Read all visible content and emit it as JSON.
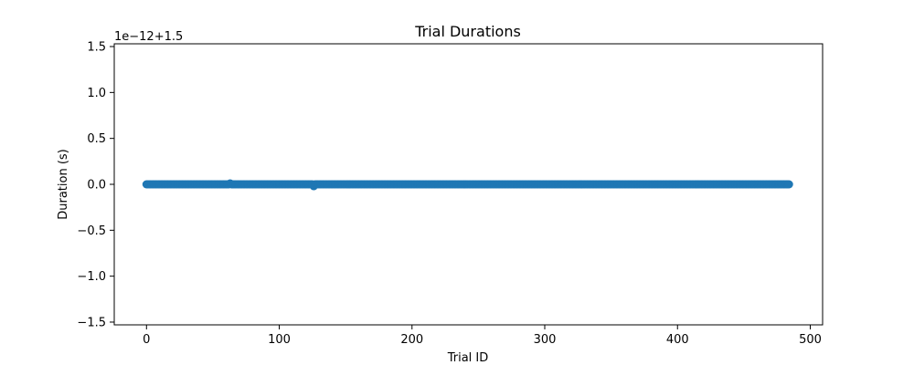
{
  "chart_data": {
    "type": "scatter",
    "title": "Trial Durations",
    "xlabel": "Trial ID",
    "ylabel": "Duration (s)",
    "y_offset_label": "1e−12+1.5",
    "xlim": [
      -24.3,
      509.3
    ],
    "ylim": [
      -1.53,
      1.53
    ],
    "x_ticks": [
      0,
      100,
      200,
      300,
      400,
      500
    ],
    "x_tick_labels": [
      "0",
      "100",
      "200",
      "300",
      "400",
      "500"
    ],
    "y_ticks": [
      -1.5,
      -1.0,
      -0.5,
      0.0,
      0.5,
      1.0,
      1.5
    ],
    "y_tick_labels": [
      "−1.5",
      "−1.0",
      "−0.5",
      "0.0",
      "0.5",
      "1.0",
      "1.5"
    ],
    "grid": false,
    "series": [
      {
        "color": "#1f77b4",
        "x_start": 0,
        "x_end": 484,
        "x_step": 1,
        "baseline_y": 0.0,
        "outliers": [
          {
            "x": 63,
            "y": 0.01
          },
          {
            "x": 126,
            "y": -0.02
          }
        ]
      }
    ]
  }
}
